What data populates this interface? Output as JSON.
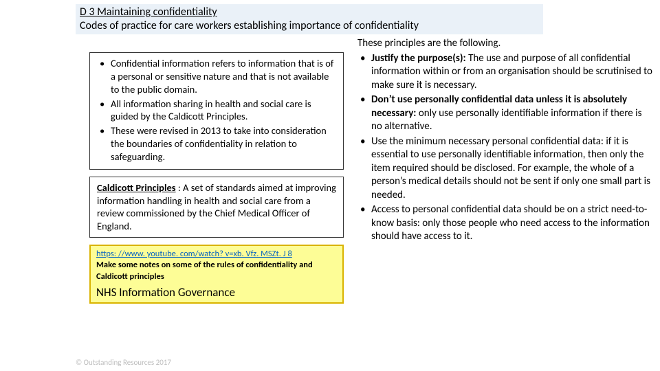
{
  "header": {
    "line1": "D 3 Maintaining confidentiality",
    "line2": "Codes of practice for care workers establishing importance of confidentiality"
  },
  "left": {
    "box1": {
      "items": [
        "Confidential information refers to information that is of a personal or sensitive nature and that is not  available to the public domain.",
        " All information sharing in health and social care is guided by the Caldicott Principles.",
        "These were revised in 2013 to take into consideration the boundaries of confidentiality in relation to safeguarding."
      ]
    },
    "box2": {
      "lead_bold": "Caldicott Principles",
      "lead_rest": " : A set of standards aimed at improving information handling in health and social care from a review commissioned by the Chief Medical Officer of England."
    },
    "yellow": {
      "link_text": "https: //www. youtube. com/watch? v=xb. Vfz. MSZt. J 8",
      "link_href": "https://www.youtube.com/watch?v=xbVfzMSZtJ8",
      "notes": "Make some notes on some of the rules of confidentiality and Caldicott principles",
      "gov": "NHS Information Governance"
    }
  },
  "right": {
    "lead": "These principles are the following.",
    "items": [
      {
        "bold": "Justify the purpose(s):",
        "rest": " The use and purpose of all confidential information within or from an organisation should be scrutinised to make sure it is necessary."
      },
      {
        "bold": "Don’t use personally confidential data unless it is absolutely necessary:",
        "rest": " only use personally identifiable information if there is no alternative."
      },
      {
        "bold": "",
        "rest": "Use the minimum necessary personal confidential data: if it is essential to use personally identifiable information, then only the item required should be disclosed. For example, the whole of a person’s medical details should not be sent if only one small part is needed."
      },
      {
        "bold": "",
        "rest": "Access to personal confidential data should be on a strict need-to-know basis: only those people who need access to the information should have access to it."
      }
    ]
  },
  "footer": "© Outstanding Resources 2017"
}
